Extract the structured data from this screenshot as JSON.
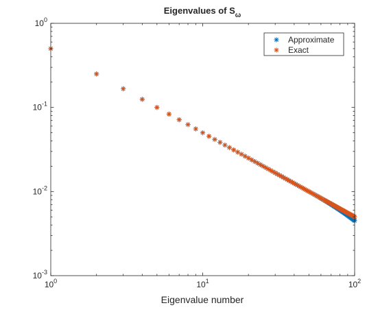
{
  "chart_data": {
    "type": "scatter",
    "title": "Eigenvalues of S",
    "title_subscript": "ω",
    "xlabel": "Eigenvalue number",
    "ylabel": "",
    "xscale": "log",
    "yscale": "log",
    "xlim": [
      1,
      100
    ],
    "ylim": [
      0.001,
      1
    ],
    "x_ticks": [
      {
        "value": 1,
        "base": "10",
        "exp": "0"
      },
      {
        "value": 10,
        "base": "10",
        "exp": "1"
      },
      {
        "value": 100,
        "base": "10",
        "exp": "2"
      }
    ],
    "y_ticks": [
      {
        "value": 0.001,
        "base": "10",
        "exp": "-3"
      },
      {
        "value": 0.01,
        "base": "10",
        "exp": "-2"
      },
      {
        "value": 0.1,
        "base": "10",
        "exp": "-1"
      },
      {
        "value": 1,
        "base": "10",
        "exp": "0"
      }
    ],
    "grid": false,
    "legend_position": "top-right",
    "marker": "asterisk",
    "series": [
      {
        "name": "Approximate",
        "color": "#0072BD",
        "x": "1..100",
        "y_rule": "0.5/n, slightly below at high n"
      },
      {
        "name": "Exact",
        "color": "#D95319",
        "x": "1..100",
        "y_rule": "0.5/n"
      }
    ]
  }
}
